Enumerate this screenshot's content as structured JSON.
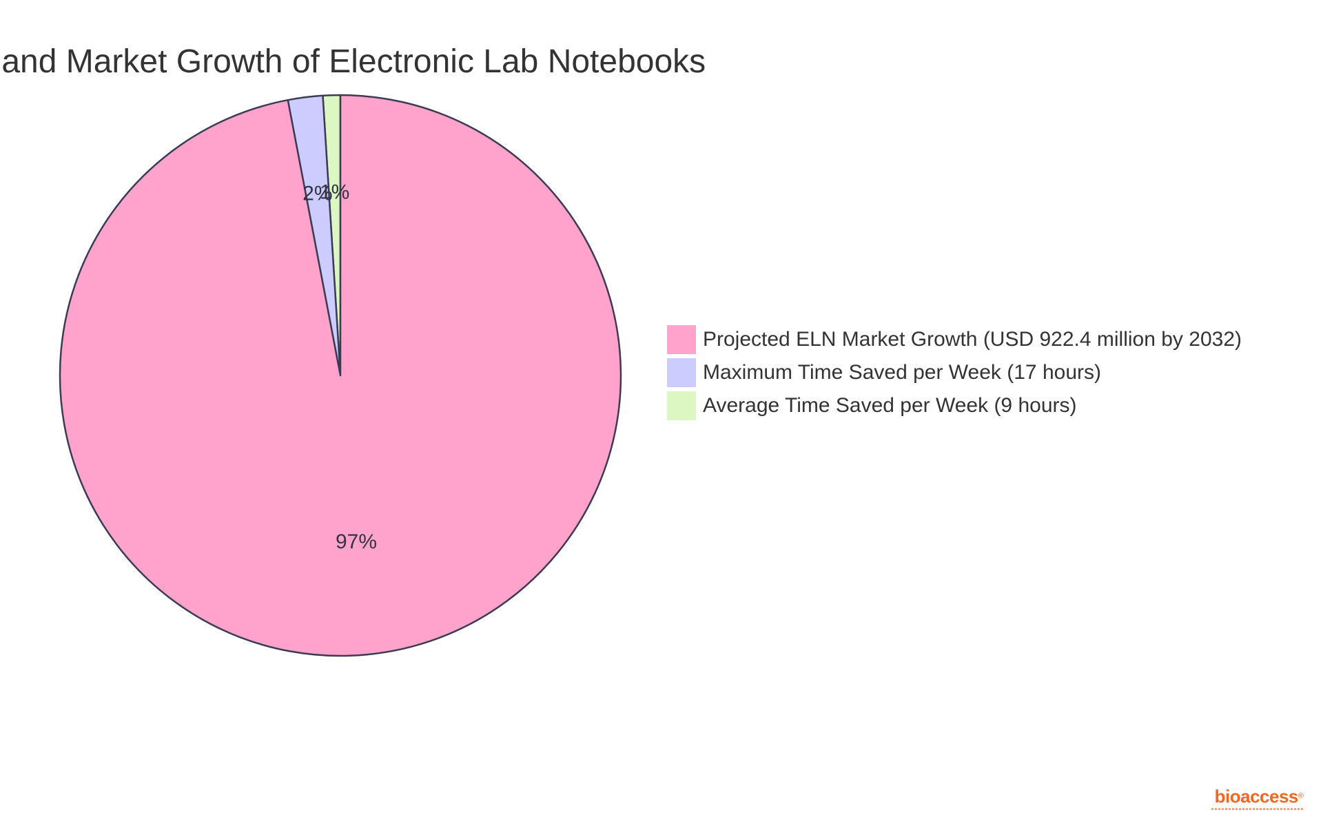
{
  "chart_data": {
    "type": "pie",
    "title": "Time Savings and Market Growth of Electronic Lab Notebooks",
    "slices": [
      {
        "label": "Projected ELN Market Growth (USD 922.4 million by 2032)",
        "value": 97,
        "display": "97%",
        "color": "#ffa3cc"
      },
      {
        "label": "Maximum Time Saved per Week (17 hours)",
        "value": 2,
        "display": "2%",
        "color": "#ccccff"
      },
      {
        "label": "Average Time Saved per Week (9 hours)",
        "value": 1,
        "display": "1%",
        "color": "#ddf7c2"
      }
    ],
    "legend_position": "right",
    "stroke_color": "#3b3b55"
  },
  "brand": {
    "name": "bioaccess",
    "mark": "®"
  }
}
